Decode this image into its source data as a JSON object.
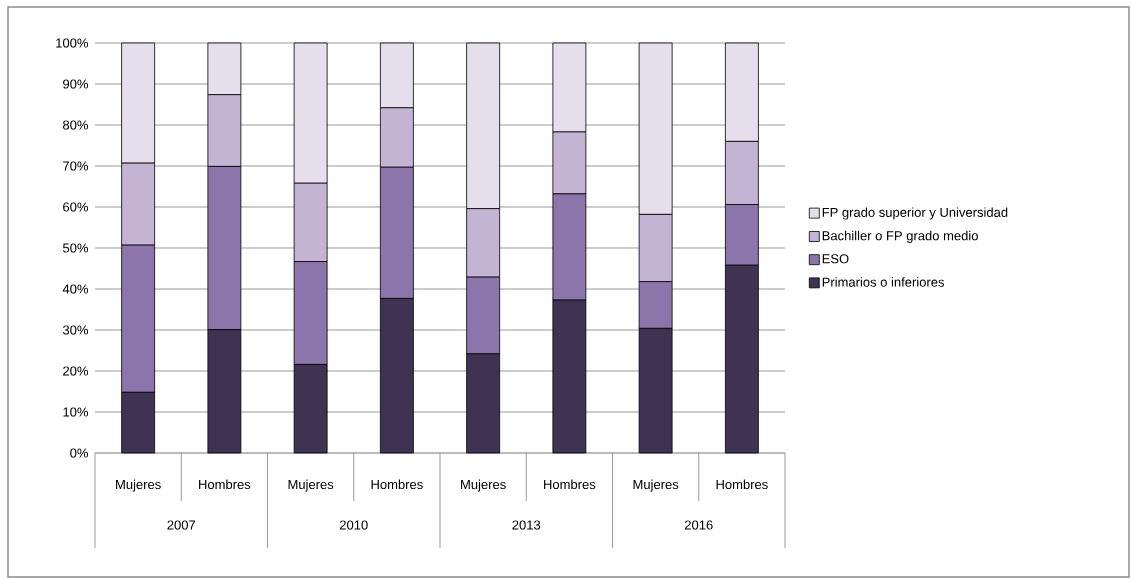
{
  "chart_data": {
    "type": "bar",
    "stacked": true,
    "categories": [
      "Mujeres",
      "Hombres",
      "Mujeres",
      "Hombres",
      "Mujeres",
      "Hombres",
      "Mujeres",
      "Hombres"
    ],
    "annotations": [
      "2007",
      "2010",
      "2013",
      "2016"
    ],
    "series": [
      {
        "name": "Primarios o inferiores",
        "color": "#3f3354",
        "values": [
          14.8,
          30.1,
          21.6,
          37.7,
          24.2,
          37.3,
          30.4,
          45.8
        ]
      },
      {
        "name": "ESO",
        "color": "#8b75aa",
        "values": [
          35.9,
          39.8,
          25.1,
          32.0,
          18.7,
          25.9,
          11.4,
          14.8
        ]
      },
      {
        "name": "Bachiller o FP grado medio",
        "color": "#c3b4d4",
        "values": [
          20.0,
          17.5,
          19.1,
          14.5,
          16.7,
          15.1,
          16.4,
          15.4
        ]
      },
      {
        "name": "FP grado superior y Universidad",
        "color": "#e5dfec",
        "values": [
          29.3,
          12.6,
          34.2,
          15.8,
          40.4,
          21.7,
          41.8,
          24.0
        ]
      }
    ],
    "ylim": [
      0,
      100
    ],
    "yticks": [
      {
        "value": 0,
        "label": "0%"
      },
      {
        "value": 10,
        "label": "10%"
      },
      {
        "value": 20,
        "label": "20%"
      },
      {
        "value": 30,
        "label": "30%"
      },
      {
        "value": 40,
        "label": "40%"
      },
      {
        "value": 50,
        "label": "50%"
      },
      {
        "value": 60,
        "label": "60%"
      },
      {
        "value": 70,
        "label": "70%"
      },
      {
        "value": 80,
        "label": "80%"
      },
      {
        "value": 90,
        "label": "90%"
      },
      {
        "value": 100,
        "label": "100%"
      }
    ],
    "grid": "y",
    "legend": "right"
  }
}
